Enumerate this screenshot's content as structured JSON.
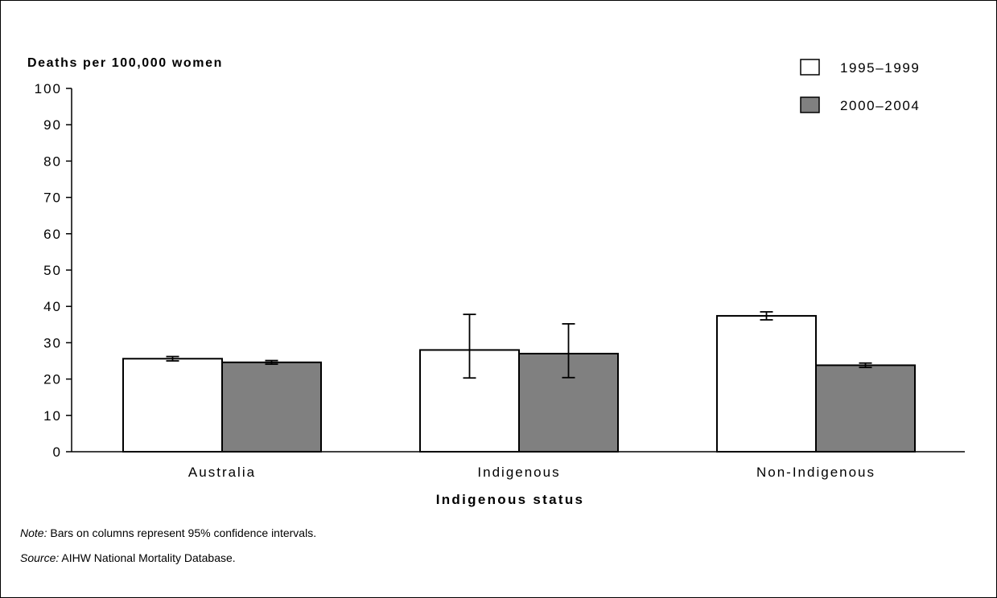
{
  "chart_data": {
    "type": "bar",
    "ylabel": "Deaths per 100,000 women",
    "xlabel": "Indigenous status",
    "ylim": [
      0,
      100
    ],
    "yticks": [
      0,
      10,
      20,
      30,
      40,
      50,
      60,
      70,
      80,
      90,
      100
    ],
    "categories": [
      "Australia",
      "Indigenous",
      "Non-Indigenous"
    ],
    "series": [
      {
        "name": "1995–1999",
        "color": "#ffffff",
        "values": [
          25.6,
          28.0,
          37.4
        ],
        "ci_low": [
          25.0,
          20.3,
          36.3
        ],
        "ci_high": [
          26.2,
          37.8,
          38.5
        ]
      },
      {
        "name": "2000–2004",
        "color": "#808080",
        "values": [
          24.6,
          27.0,
          23.8
        ],
        "ci_low": [
          24.1,
          20.4,
          23.2
        ],
        "ci_high": [
          25.1,
          35.2,
          24.4
        ]
      }
    ],
    "legend_position": "top-right",
    "grid": false
  },
  "notes": {
    "note_label": "Note:",
    "note_text": " Bars on columns represent 95% confidence intervals.",
    "source_label": "Source:",
    "source_text": " AIHW National Mortality Database."
  }
}
